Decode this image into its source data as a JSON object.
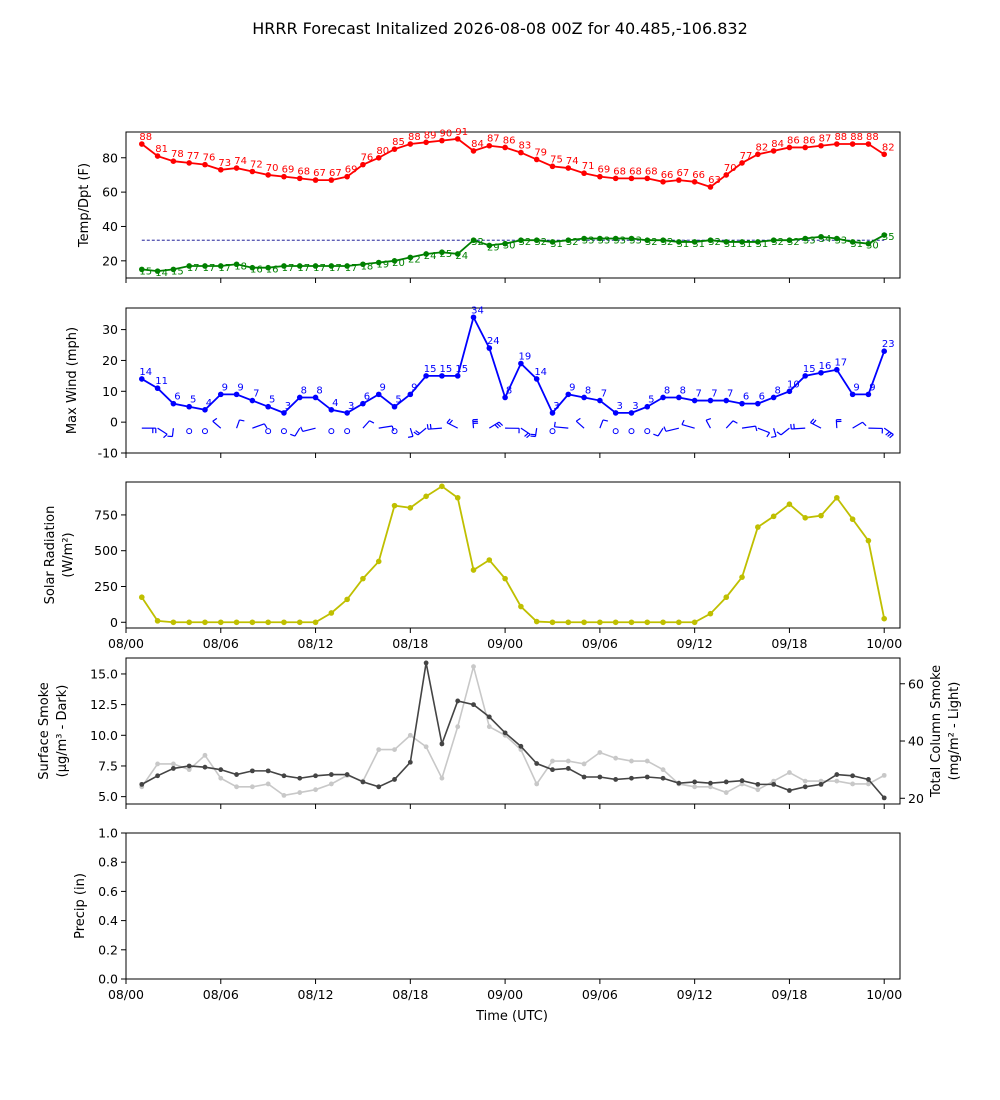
{
  "title": "HRRR Forecast Initalized 2026-08-08 00Z for 40.485,-106.832",
  "x_axis": {
    "label": "Time (UTC)",
    "ticks": [
      {
        "h": 0,
        "label": "08/00"
      },
      {
        "h": 6,
        "label": "08/06"
      },
      {
        "h": 12,
        "label": "08/12"
      },
      {
        "h": 18,
        "label": "08/18"
      },
      {
        "h": 24,
        "label": "09/00"
      },
      {
        "h": 30,
        "label": "09/06"
      },
      {
        "h": 36,
        "label": "09/12"
      },
      {
        "h": 42,
        "label": "09/18"
      },
      {
        "h": 48,
        "label": "10/00"
      }
    ],
    "range": [
      0,
      49
    ],
    "note": "x values are forecast hours after 2026-08-08 00Z (tick labels are DD/HH)"
  },
  "colors": {
    "temp": "#ff0000",
    "dewpoint": "#008000",
    "wind": "#0000ff",
    "solar": "#bfbf00",
    "smoke_surface": "#444444",
    "smoke_column": "#c8c8c8",
    "reference_line": "#00008b"
  },
  "chart_data": [
    {
      "type": "line",
      "ylabel": "Temp/Dpt (F)",
      "ylim": [
        10,
        95
      ],
      "yticks": [
        20,
        40,
        60,
        80
      ],
      "x": [
        1,
        2,
        3,
        4,
        5,
        6,
        7,
        8,
        9,
        10,
        11,
        12,
        13,
        14,
        15,
        16,
        17,
        18,
        19,
        20,
        21,
        22,
        23,
        24,
        25,
        26,
        27,
        28,
        29,
        30,
        31,
        32,
        33,
        34,
        35,
        36,
        37,
        38,
        39,
        40,
        41,
        42,
        43,
        44,
        45,
        46,
        47,
        48
      ],
      "reference_line": 32,
      "series": [
        {
          "key": "temp",
          "values": [
            88,
            81,
            78,
            77,
            76,
            73,
            74,
            72,
            70,
            69,
            68,
            67,
            67,
            69,
            76,
            80,
            85,
            88,
            89,
            90,
            91,
            84,
            87,
            86,
            83,
            79,
            75,
            74,
            71,
            69,
            68,
            68,
            68,
            66,
            67,
            66,
            63,
            70,
            77,
            82,
            84,
            86,
            86,
            87,
            88,
            88,
            88,
            82
          ]
        },
        {
          "key": "dewpoint",
          "values": [
            15,
            14,
            15,
            17,
            17,
            17,
            18,
            16,
            16,
            17,
            17,
            17,
            17,
            17,
            18,
            19,
            20,
            22,
            24,
            25,
            24,
            32,
            29,
            30,
            32,
            32,
            31,
            32,
            33,
            33,
            33,
            33,
            32,
            32,
            31,
            31,
            32,
            31,
            31,
            31,
            32,
            32,
            33,
            34,
            33,
            31,
            30,
            35
          ]
        }
      ]
    },
    {
      "type": "line",
      "ylabel": "Max Wind (mph)",
      "ylim": [
        -10,
        37
      ],
      "yticks": [
        -10,
        0,
        10,
        20,
        30
      ],
      "x": [
        1,
        2,
        3,
        4,
        5,
        6,
        7,
        8,
        9,
        10,
        11,
        12,
        13,
        14,
        15,
        16,
        17,
        18,
        19,
        20,
        21,
        22,
        23,
        24,
        25,
        26,
        27,
        28,
        29,
        30,
        31,
        32,
        33,
        34,
        35,
        36,
        37,
        38,
        39,
        40,
        41,
        42,
        43,
        44,
        45,
        46,
        47,
        48
      ],
      "series": [
        {
          "key": "wind",
          "values": [
            14,
            11,
            6,
            5,
            4,
            9,
            9,
            7,
            5,
            3,
            8,
            8,
            4,
            3,
            6,
            9,
            5,
            9,
            15,
            15,
            15,
            34,
            24,
            8,
            19,
            14,
            3,
            9,
            8,
            7,
            3,
            3,
            5,
            8,
            8,
            7,
            7,
            7,
            6,
            6,
            8,
            10,
            15,
            16,
            17,
            9,
            9,
            23
          ]
        }
      ],
      "wind_barbs": "row of wind barbs drawn along y = 0, calm circles where wind is light"
    },
    {
      "type": "line",
      "ylabel": "Solar Radiation",
      "ylabel_unit": "(W/m²)",
      "ylim": [
        -40,
        980
      ],
      "yticks": [
        0,
        250,
        500,
        750
      ],
      "x": [
        1,
        2,
        3,
        4,
        5,
        6,
        7,
        8,
        9,
        10,
        11,
        12,
        13,
        14,
        15,
        16,
        17,
        18,
        19,
        20,
        21,
        22,
        23,
        24,
        25,
        26,
        27,
        28,
        29,
        30,
        31,
        32,
        33,
        34,
        35,
        36,
        37,
        38,
        39,
        40,
        41,
        42,
        43,
        44,
        45,
        46,
        47,
        48
      ],
      "series": [
        {
          "key": "solar",
          "values": [
            175,
            10,
            0,
            0,
            0,
            0,
            0,
            0,
            0,
            0,
            0,
            0,
            65,
            160,
            305,
            425,
            815,
            800,
            880,
            950,
            870,
            365,
            435,
            305,
            110,
            5,
            0,
            0,
            0,
            0,
            0,
            0,
            0,
            0,
            0,
            0,
            60,
            175,
            315,
            665,
            740,
            825,
            730,
            745,
            870,
            720,
            570,
            25
          ]
        }
      ]
    },
    {
      "type": "line",
      "ylabel": "Surface Smoke",
      "ylabel_unit": "(μg/m³ - Dark)",
      "ylabel_right": "Total Column Smoke",
      "ylabel_right_unit": "(mg/m² - Light)",
      "ylim": [
        4.4,
        16.3
      ],
      "yticks": [
        5.0,
        7.5,
        10.0,
        12.5,
        15.0
      ],
      "ylim_right": [
        18,
        69
      ],
      "yticks_right": [
        20,
        40,
        60
      ],
      "x": [
        1,
        2,
        3,
        4,
        5,
        6,
        7,
        8,
        9,
        10,
        11,
        12,
        13,
        14,
        15,
        16,
        17,
        18,
        19,
        20,
        21,
        22,
        23,
        24,
        25,
        26,
        27,
        28,
        29,
        30,
        31,
        32,
        33,
        34,
        35,
        36,
        37,
        38,
        39,
        40,
        41,
        42,
        43,
        44,
        45,
        46,
        47,
        48
      ],
      "series": [
        {
          "key": "smoke_surface",
          "axis": "left",
          "values": [
            6.0,
            6.7,
            7.3,
            7.5,
            7.4,
            7.2,
            6.8,
            7.1,
            7.1,
            6.7,
            6.5,
            6.7,
            6.8,
            6.8,
            6.2,
            5.8,
            6.4,
            7.8,
            15.9,
            9.3,
            12.8,
            12.5,
            11.5,
            10.2,
            9.1,
            7.7,
            7.2,
            7.3,
            6.6,
            6.6,
            6.4,
            6.5,
            6.6,
            6.5,
            6.1,
            6.2,
            6.1,
            6.2,
            6.3,
            6.0,
            6.0,
            5.5,
            5.8,
            6.0,
            6.8,
            6.7,
            6.4,
            4.9
          ]
        },
        {
          "key": "smoke_column",
          "axis": "right",
          "values": [
            24,
            32,
            32,
            30,
            35,
            27,
            24,
            24,
            25,
            21,
            22,
            23,
            25,
            28,
            26,
            37,
            37,
            42,
            38,
            27,
            45,
            66,
            45,
            42,
            37,
            25,
            33,
            33,
            32,
            36,
            34,
            33,
            33,
            30,
            25,
            24,
            24,
            22,
            25,
            23,
            26,
            29,
            26,
            26,
            26,
            25,
            25,
            28
          ]
        }
      ]
    },
    {
      "type": "line",
      "ylabel": "Precip (in)",
      "ylim": [
        0,
        1
      ],
      "yticks": [
        "0.0",
        "0.2",
        "0.4",
        "0.6",
        "0.8",
        "1.0"
      ],
      "series": []
    }
  ]
}
